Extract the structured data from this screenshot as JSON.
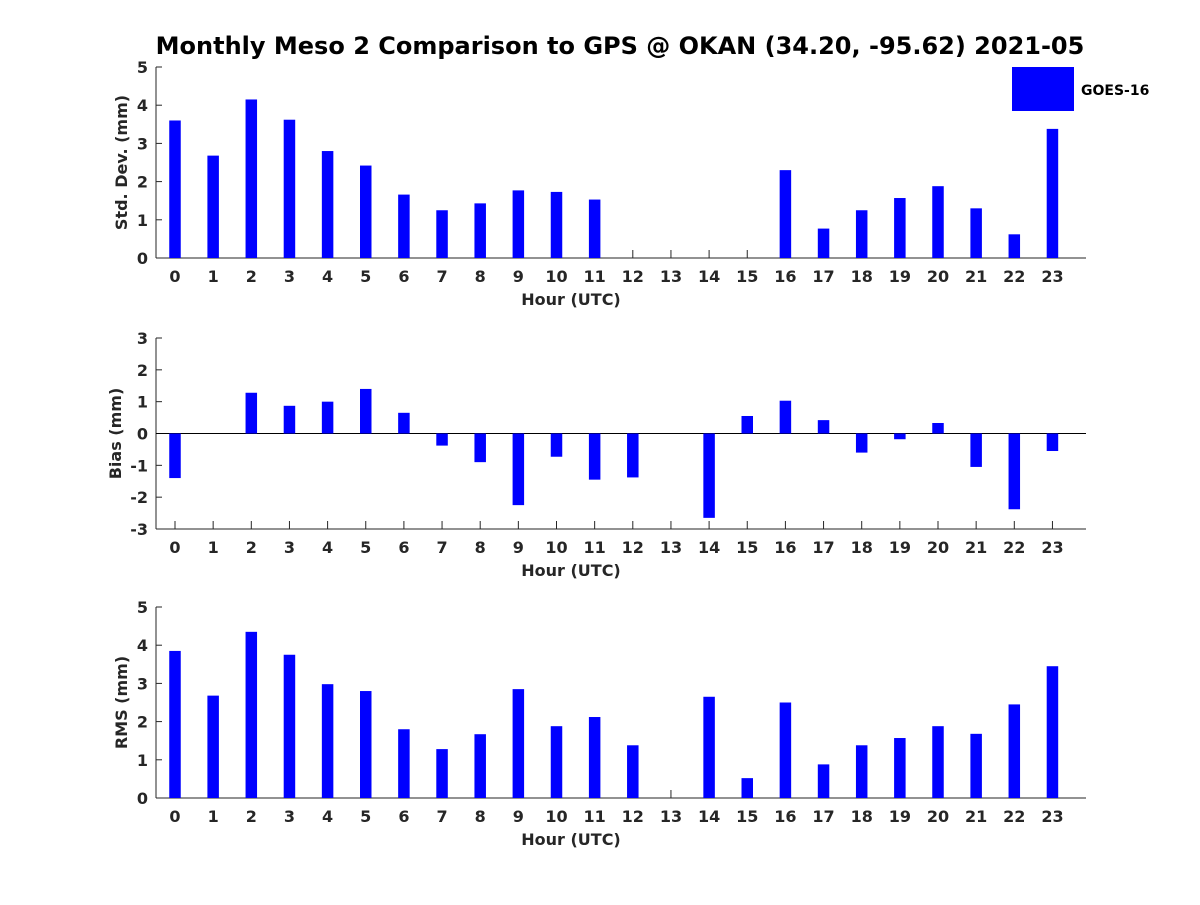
{
  "chart_data": [
    {
      "type": "bar",
      "title": "Monthly Meso 2 Comparison to GPS @ OKAN (34.20, -95.62) 2021-05",
      "xlabel": "Hour (UTC)",
      "ylabel": "Std. Dev. (mm)",
      "ylim": [
        0,
        5
      ],
      "yticks": [
        0,
        1,
        2,
        3,
        4,
        5
      ],
      "categories": [
        "0",
        "1",
        "2",
        "3",
        "4",
        "5",
        "6",
        "7",
        "8",
        "9",
        "10",
        "11",
        "12",
        "13",
        "14",
        "15",
        "16",
        "17",
        "18",
        "19",
        "20",
        "21",
        "22",
        "23"
      ],
      "series": [
        {
          "name": "GOES-16",
          "color": "#0000ff",
          "values": [
            3.6,
            2.68,
            4.15,
            3.62,
            2.8,
            2.42,
            1.66,
            1.25,
            1.43,
            1.77,
            1.73,
            1.53,
            null,
            null,
            null,
            null,
            2.3,
            0.77,
            1.25,
            1.57,
            1.88,
            1.3,
            0.62,
            3.38
          ]
        }
      ],
      "legend": {
        "entries": [
          "GOES-16"
        ],
        "position": "top-right"
      }
    },
    {
      "type": "bar",
      "xlabel": "Hour (UTC)",
      "ylabel": "Bias (mm)",
      "ylim": [
        -3,
        3
      ],
      "yticks": [
        -3,
        -2,
        -1,
        0,
        1,
        2,
        3
      ],
      "categories": [
        "0",
        "1",
        "2",
        "3",
        "4",
        "5",
        "6",
        "7",
        "8",
        "9",
        "10",
        "11",
        "12",
        "13",
        "14",
        "15",
        "16",
        "17",
        "18",
        "19",
        "20",
        "21",
        "22",
        "23"
      ],
      "series": [
        {
          "name": "GOES-16",
          "color": "#0000ff",
          "values": [
            -1.4,
            null,
            1.28,
            0.87,
            1.0,
            1.4,
            0.65,
            -0.38,
            -0.9,
            -2.25,
            -0.73,
            -1.45,
            -1.38,
            null,
            -2.65,
            0.55,
            1.03,
            0.42,
            -0.6,
            -0.18,
            0.33,
            -1.05,
            -2.38,
            -0.55
          ]
        }
      ]
    },
    {
      "type": "bar",
      "xlabel": "Hour (UTC)",
      "ylabel": "RMS (mm)",
      "ylim": [
        0,
        5
      ],
      "yticks": [
        0,
        1,
        2,
        3,
        4,
        5
      ],
      "categories": [
        "0",
        "1",
        "2",
        "3",
        "4",
        "5",
        "6",
        "7",
        "8",
        "9",
        "10",
        "11",
        "12",
        "13",
        "14",
        "15",
        "16",
        "17",
        "18",
        "19",
        "20",
        "21",
        "22",
        "23"
      ],
      "series": [
        {
          "name": "GOES-16",
          "color": "#0000ff",
          "values": [
            3.85,
            2.68,
            4.35,
            3.75,
            2.98,
            2.8,
            1.8,
            1.28,
            1.67,
            2.85,
            1.88,
            2.12,
            1.38,
            null,
            2.65,
            0.52,
            2.5,
            0.88,
            1.38,
            1.57,
            1.88,
            1.68,
            2.45,
            3.45
          ]
        }
      ]
    }
  ]
}
